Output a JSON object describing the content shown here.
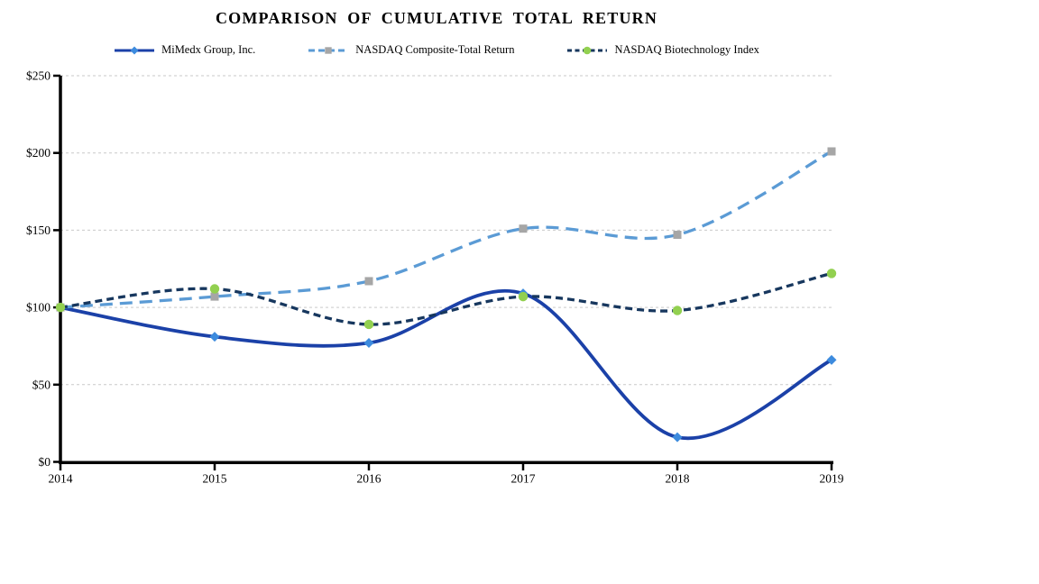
{
  "title": "COMPARISON OF CUMULATIVE TOTAL RETURN",
  "chart_data": {
    "type": "line",
    "smoothed": true,
    "x": [
      "2014",
      "2015",
      "2016",
      "2017",
      "2018",
      "2019"
    ],
    "series": [
      {
        "id": "mimedx",
        "name": "MiMedx Group, Inc.",
        "values": [
          100,
          81,
          77,
          109,
          16,
          66
        ],
        "color": "#1b41a8",
        "marker": "diamond",
        "marker_color": "#3d8bde",
        "dash": "solid"
      },
      {
        "id": "nasdaq-composite",
        "name": "NASDAQ Composite-Total Return",
        "values": [
          100,
          107,
          117,
          151,
          147,
          201
        ],
        "color": "#5b9bd5",
        "marker": "square",
        "marker_color": "#a6a6a6",
        "dash": "long"
      },
      {
        "id": "nasdaq-biotech",
        "name": "NASDAQ Biotechnology Index",
        "values": [
          100,
          112,
          89,
          107,
          98,
          122
        ],
        "color": "#17375e",
        "marker": "circle",
        "marker_color": "#92d050",
        "dash": "short"
      }
    ],
    "ylim": [
      0,
      250
    ],
    "ytick_step": 50,
    "ytick_labels": [
      "$0",
      "$50",
      "$100",
      "$150",
      "$200",
      "$250"
    ],
    "grid": true,
    "gridline_color": "#c9c9c9",
    "axis_color": "#000000",
    "legend_position": "top"
  }
}
